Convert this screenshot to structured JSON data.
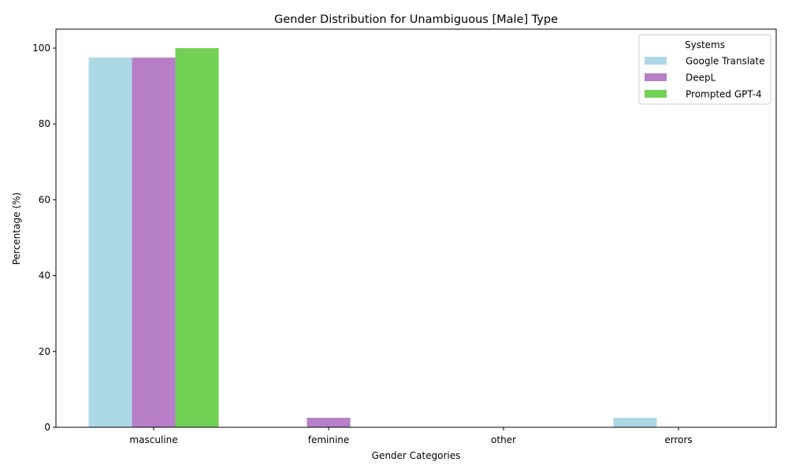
{
  "chart_data": {
    "type": "bar",
    "title": "Gender Distribution for Unambiguous [Male] Type",
    "xlabel": "Gender Categories",
    "ylabel": "Percentage (%)",
    "categories": [
      "masculine",
      "feminine",
      "other",
      "errors"
    ],
    "ylim": [
      0,
      105
    ],
    "yticks": [
      0,
      20,
      40,
      60,
      80,
      100
    ],
    "grid": false,
    "legend": {
      "title": "Systems",
      "placement": "top-right"
    },
    "series": [
      {
        "name": "Google Translate",
        "color": "#add8e6",
        "values": [
          97.5,
          0,
          0,
          2.5
        ]
      },
      {
        "name": "DeepL",
        "color": "#b77fc7",
        "values": [
          97.5,
          2.5,
          0,
          0
        ]
      },
      {
        "name": "Prompted GPT-4",
        "color": "#72d155",
        "values": [
          100,
          0,
          0,
          0
        ]
      }
    ]
  }
}
